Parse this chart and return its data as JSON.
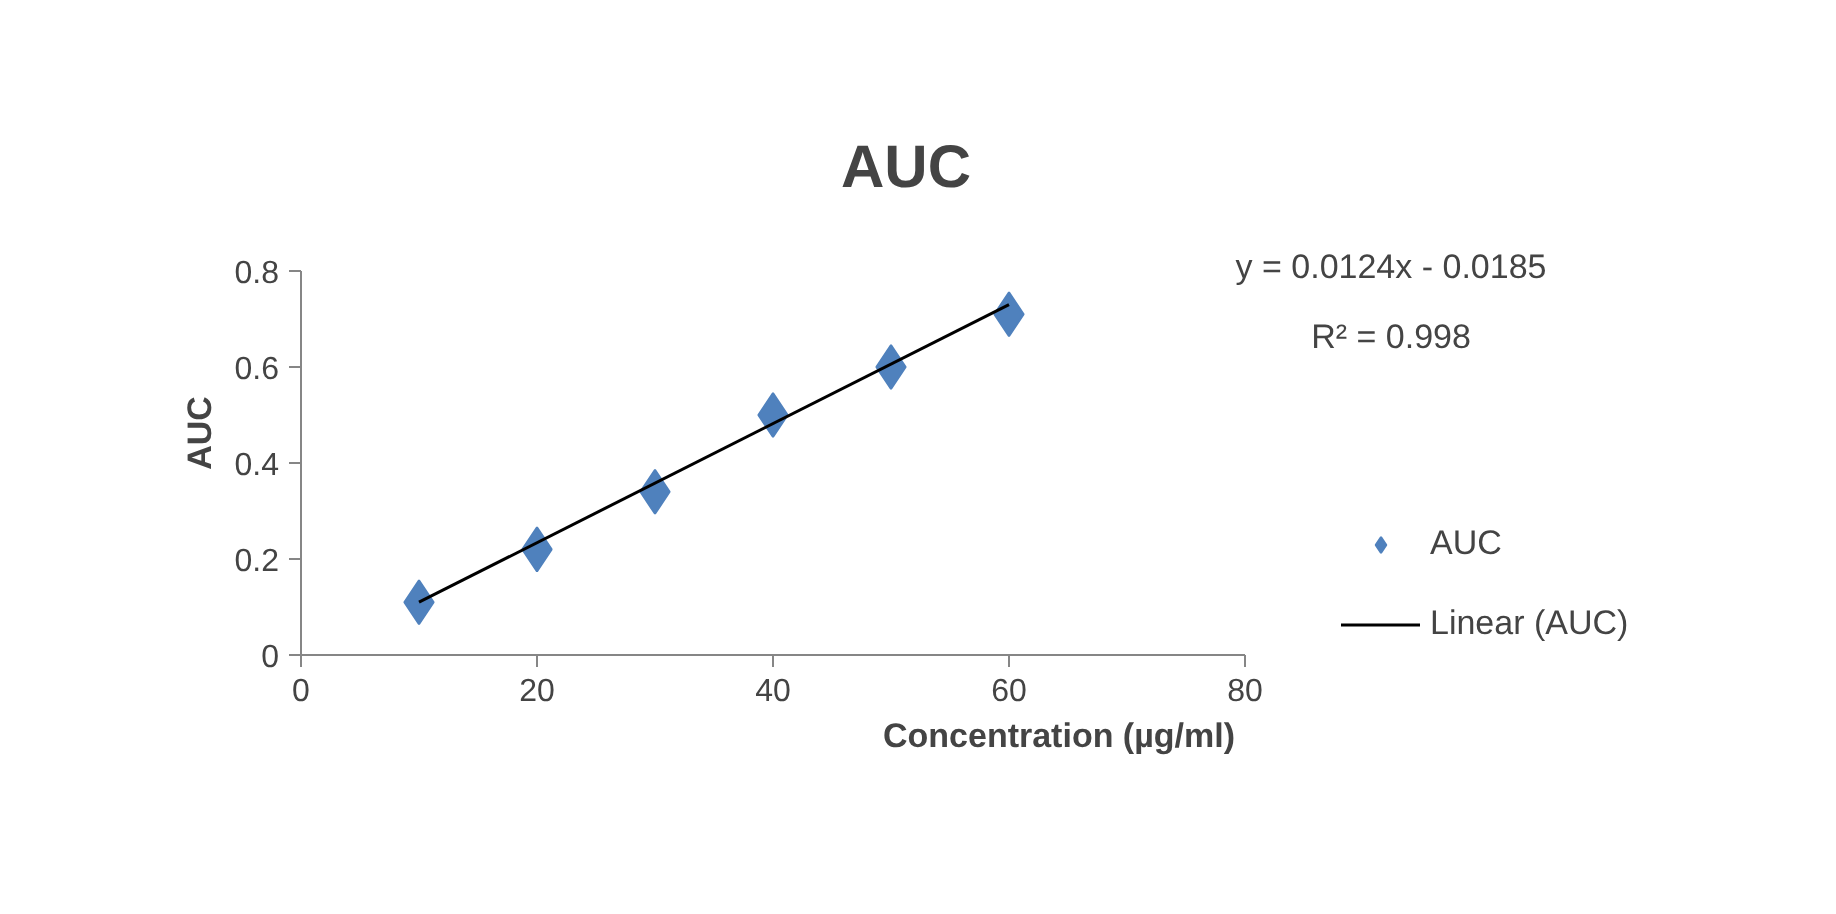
{
  "chart_data": {
    "type": "scatter",
    "title": "AUC",
    "xlabel": "Concentration (µg/ml)",
    "ylabel": "AUC",
    "x": [
      10,
      20,
      30,
      40,
      50,
      60
    ],
    "series": [
      {
        "name": "AUC",
        "color": "#4f81bd",
        "marker": "diamond",
        "values": [
          0.11,
          0.22,
          0.34,
          0.5,
          0.6,
          0.71
        ]
      },
      {
        "name": "Linear (AUC)",
        "type": "line",
        "color": "#000000",
        "x": [
          10,
          60
        ],
        "values": [
          0.11,
          0.73
        ]
      }
    ],
    "xlim": [
      0,
      80
    ],
    "xticks": [
      0,
      20,
      40,
      60,
      80
    ],
    "ylim": [
      0,
      0.8
    ],
    "yticks": [
      0,
      0.2,
      0.4,
      0.6,
      0.8
    ],
    "annotations": [
      "y = 0.0124x - 0.0185",
      "R² = 0.998"
    ],
    "grid": false,
    "legend": "right",
    "line_style": "solid"
  }
}
